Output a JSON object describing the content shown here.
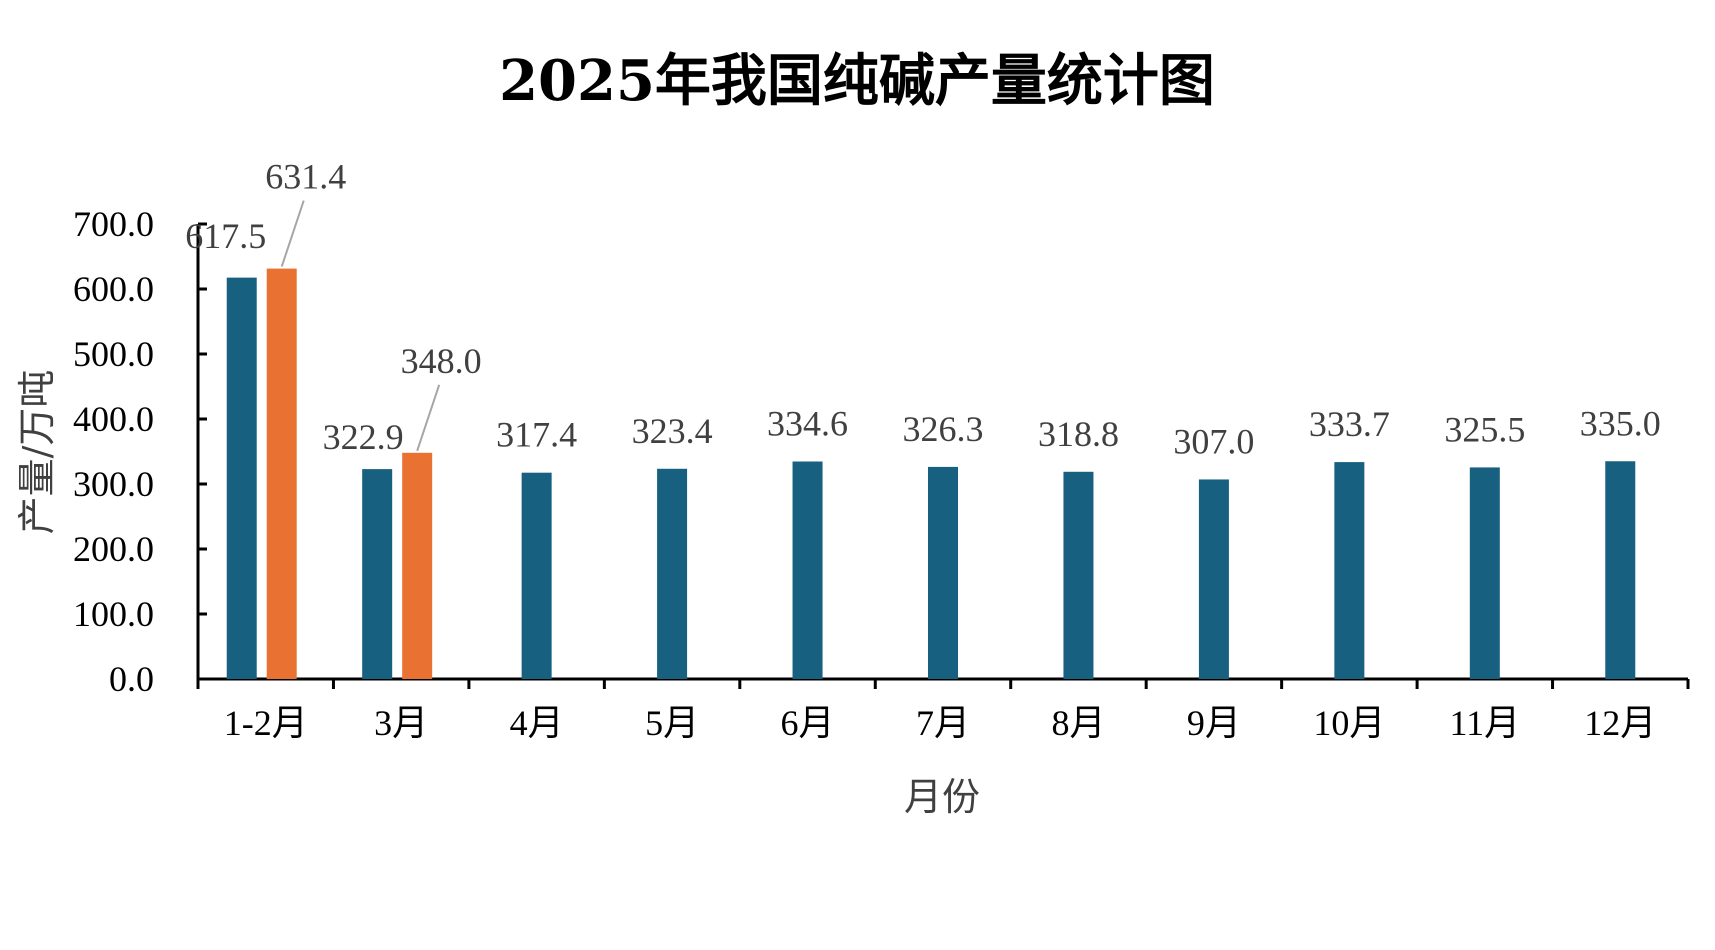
{
  "chart_data": {
    "type": "bar",
    "title": "2025年我国纯碱产量统计图",
    "xlabel": "月份",
    "ylabel": "产量/万吨",
    "ylim": [
      0,
      700
    ],
    "yticks": [
      "0.0",
      "100.0",
      "200.0",
      "300.0",
      "400.0",
      "500.0",
      "600.0",
      "700.0"
    ],
    "categories": [
      "1-2月",
      "3月",
      "4月",
      "5月",
      "6月",
      "7月",
      "8月",
      "9月",
      "10月",
      "11月",
      "12月"
    ],
    "series": [
      {
        "color": "#17607F",
        "values": [
          617.5,
          322.9,
          317.4,
          323.4,
          334.6,
          326.3,
          318.8,
          307.0,
          333.7,
          325.5,
          335.0
        ],
        "labels": [
          "617.5",
          "322.9",
          "317.4",
          "323.4",
          "334.6",
          "326.3",
          "318.8",
          "307.0",
          "333.7",
          "325.5",
          "335.0"
        ]
      },
      {
        "color": "#E97132",
        "values": [
          631.4,
          348.0,
          null,
          null,
          null,
          null,
          null,
          null,
          null,
          null,
          null
        ],
        "labels": [
          "631.4",
          "348.0",
          null,
          null,
          null,
          null,
          null,
          null,
          null,
          null,
          null
        ]
      }
    ],
    "grid": false,
    "legend": "none",
    "axis_color": "#000000",
    "label_color": "#404040",
    "leader_line_color": "#A6A6A6"
  }
}
